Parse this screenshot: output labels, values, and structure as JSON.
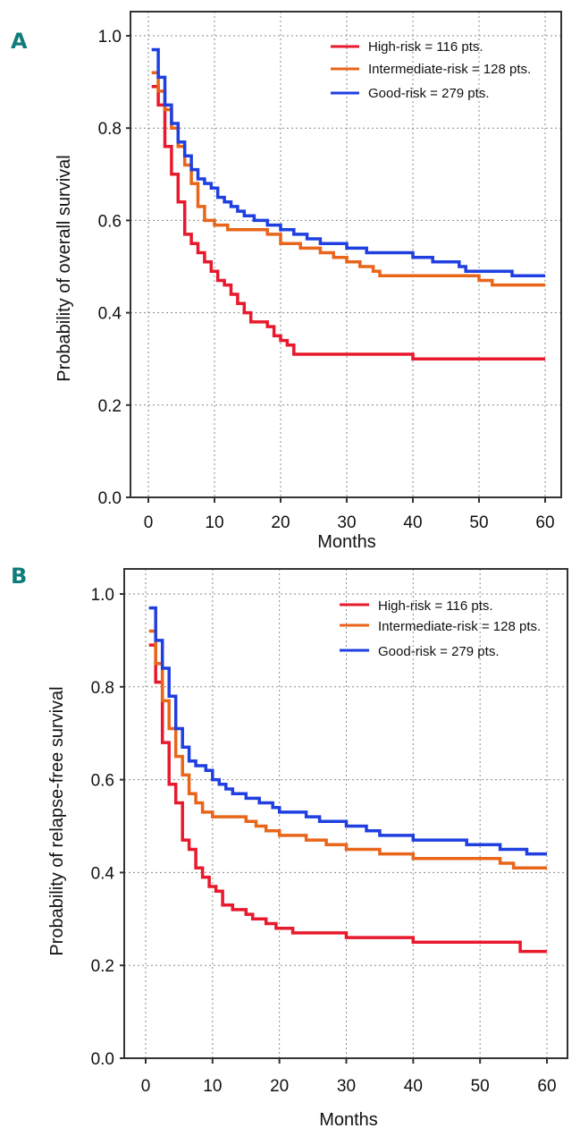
{
  "chart_data": [
    {
      "type": "line",
      "subtype": "kaplan-meier-step",
      "panel": "A",
      "title": "",
      "xlabel": "Months",
      "ylabel": "Probability of overall survival",
      "xlim": [
        0,
        60
      ],
      "ylim": [
        0.0,
        1.0
      ],
      "xticks": [
        "0",
        "10",
        "20",
        "30",
        "40",
        "50",
        "60"
      ],
      "yticks": [
        "0.0",
        "0.2",
        "0.4",
        "0.6",
        "0.8",
        "1.0"
      ],
      "grid": true,
      "legend_position": "top-right",
      "series": [
        {
          "name": "High-risk = 116 pts.",
          "color": "#e8192c",
          "x": [
            0.5,
            1.5,
            2.5,
            3.5,
            4.5,
            5.5,
            6.5,
            7.5,
            8.5,
            9.5,
            10.5,
            11.5,
            12.5,
            13.5,
            14.5,
            15.5,
            18,
            19,
            20,
            21,
            22,
            23,
            30,
            35,
            40,
            45,
            50,
            55,
            60
          ],
          "values": [
            0.89,
            0.85,
            0.76,
            0.7,
            0.64,
            0.57,
            0.55,
            0.53,
            0.51,
            0.49,
            0.47,
            0.46,
            0.44,
            0.42,
            0.4,
            0.38,
            0.37,
            0.35,
            0.34,
            0.33,
            0.31,
            0.31,
            0.31,
            0.31,
            0.3,
            0.3,
            0.3,
            0.3,
            0.3
          ]
        },
        {
          "name": "Intermediate-risk = 128 pts.",
          "color": "#e8651a",
          "x": [
            0.5,
            1.5,
            2.5,
            3.5,
            4.5,
            5.5,
            6.5,
            7.5,
            8.5,
            10,
            12,
            15,
            18,
            20,
            22,
            23,
            26,
            28,
            30,
            32,
            34,
            35,
            40,
            45,
            50,
            52,
            55,
            60
          ],
          "values": [
            0.92,
            0.88,
            0.84,
            0.8,
            0.76,
            0.72,
            0.68,
            0.63,
            0.6,
            0.59,
            0.58,
            0.58,
            0.57,
            0.55,
            0.55,
            0.54,
            0.53,
            0.52,
            0.51,
            0.5,
            0.49,
            0.48,
            0.48,
            0.48,
            0.47,
            0.46,
            0.46,
            0.46
          ]
        },
        {
          "name": "Good-risk = 279 pts.",
          "color": "#1f3fe0",
          "x": [
            0.5,
            1.5,
            2.5,
            3.5,
            4.5,
            5.5,
            6.5,
            7.5,
            8.5,
            9.5,
            10.5,
            11.5,
            12.5,
            13.5,
            14.5,
            16,
            18,
            20,
            22,
            24,
            26,
            28,
            30,
            33,
            36,
            40,
            43,
            45,
            47,
            48,
            50,
            55,
            60
          ],
          "values": [
            0.97,
            0.91,
            0.85,
            0.81,
            0.77,
            0.74,
            0.71,
            0.69,
            0.68,
            0.67,
            0.65,
            0.64,
            0.63,
            0.62,
            0.61,
            0.6,
            0.59,
            0.58,
            0.57,
            0.56,
            0.55,
            0.55,
            0.54,
            0.53,
            0.53,
            0.52,
            0.51,
            0.51,
            0.5,
            0.49,
            0.49,
            0.48,
            0.48
          ]
        }
      ]
    },
    {
      "type": "line",
      "subtype": "kaplan-meier-step",
      "panel": "B",
      "title": "",
      "xlabel": "Months",
      "ylabel": "Probability of relapse-free survival",
      "xlim": [
        0,
        60
      ],
      "ylim": [
        0.0,
        1.0
      ],
      "xticks": [
        "0",
        "10",
        "20",
        "30",
        "40",
        "50",
        "60"
      ],
      "yticks": [
        "0.0",
        "0.2",
        "0.4",
        "0.6",
        "0.8",
        "1.0"
      ],
      "grid": true,
      "legend_position": "top-right",
      "series": [
        {
          "name": "High-risk = 116 pts.",
          "color": "#e8192c",
          "x": [
            0.5,
            1.5,
            2.5,
            3.5,
            4.5,
            5.5,
            6.5,
            7.5,
            8.5,
            9.5,
            10.5,
            11.5,
            13,
            15,
            16,
            18,
            19.5,
            20.5,
            22,
            23,
            27,
            30,
            33,
            40,
            45,
            50,
            54,
            56,
            60
          ],
          "values": [
            0.89,
            0.81,
            0.68,
            0.59,
            0.55,
            0.47,
            0.45,
            0.41,
            0.39,
            0.37,
            0.36,
            0.33,
            0.32,
            0.31,
            0.3,
            0.29,
            0.28,
            0.28,
            0.27,
            0.27,
            0.27,
            0.26,
            0.26,
            0.25,
            0.25,
            0.25,
            0.25,
            0.23,
            0.23
          ]
        },
        {
          "name": "Intermediate-risk = 128 pts.",
          "color": "#e8651a",
          "x": [
            0.5,
            1.5,
            2.5,
            3.5,
            4.5,
            5.5,
            6.5,
            7.5,
            8.5,
            10,
            15,
            16.5,
            18,
            20,
            24,
            27,
            30,
            35,
            40,
            45,
            53,
            55,
            60
          ],
          "values": [
            0.92,
            0.85,
            0.77,
            0.71,
            0.65,
            0.61,
            0.57,
            0.55,
            0.53,
            0.52,
            0.51,
            0.5,
            0.49,
            0.48,
            0.47,
            0.46,
            0.45,
            0.44,
            0.43,
            0.43,
            0.42,
            0.41,
            0.41
          ]
        },
        {
          "name": "Good-risk = 279 pts.",
          "color": "#1f3fe0",
          "x": [
            0.5,
            1.5,
            2.5,
            3.5,
            4.5,
            5.5,
            6.5,
            7.5,
            9,
            10,
            11,
            12,
            13,
            15,
            17,
            19,
            20,
            22,
            24,
            26,
            28,
            30,
            33,
            35,
            37,
            40,
            43,
            45,
            48,
            50,
            53,
            55,
            57,
            60
          ],
          "values": [
            0.97,
            0.9,
            0.84,
            0.78,
            0.71,
            0.67,
            0.64,
            0.63,
            0.62,
            0.6,
            0.59,
            0.58,
            0.57,
            0.56,
            0.55,
            0.54,
            0.53,
            0.53,
            0.52,
            0.51,
            0.51,
            0.5,
            0.49,
            0.48,
            0.48,
            0.47,
            0.47,
            0.47,
            0.46,
            0.46,
            0.45,
            0.45,
            0.44,
            0.44
          ]
        }
      ]
    }
  ],
  "panels": [
    {
      "letter": "A",
      "legend": [
        "High-risk = 116 pts.",
        "Intermediate-risk = 128 pts.",
        "Good-risk = 279 pts."
      ],
      "ylabel": "Probability of overall survival",
      "xlabel": "Months"
    },
    {
      "letter": "B",
      "legend": [
        "High-risk = 116 pts.",
        "Intermediate-risk = 128 pts.",
        "Good-risk = 279 pts."
      ],
      "ylabel": "Probability of relapse-free survival",
      "xlabel": "Months"
    }
  ],
  "colors": {
    "high_risk": "#e8192c",
    "intermediate_risk": "#e8651a",
    "good_risk": "#1f3fe0",
    "panel_letter": "#0f7c7a"
  }
}
